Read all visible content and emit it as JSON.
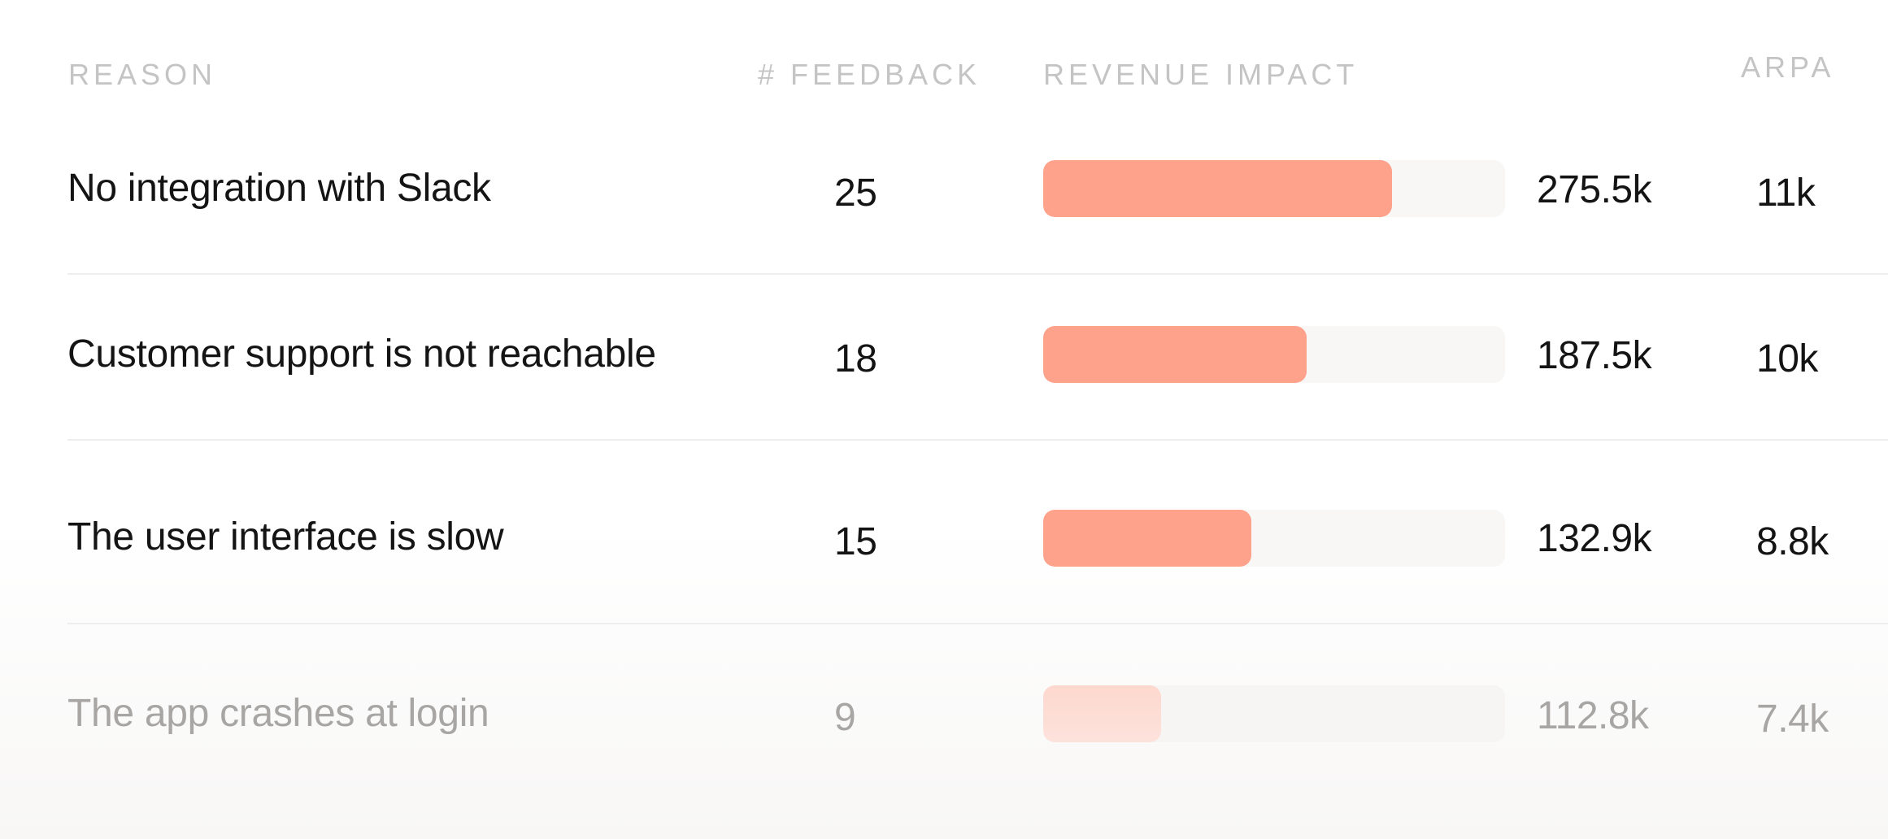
{
  "headers": {
    "reason": "REASON",
    "feedback": "# FEEDBACK",
    "revenue_impact": "REVENUE IMPACT",
    "arpa": "ARPA"
  },
  "colors": {
    "bar_fill": "#ffa28b",
    "bar_track": "#f8f7f6",
    "header_text": "#c4c4c4",
    "row_text": "#141414",
    "faded_text": "#a8a6a4"
  },
  "rows": [
    {
      "reason": "No integration with Slack",
      "feedback": "25",
      "revenue": "275.5k",
      "revenue_fraction": 0.755,
      "arpa": "11k"
    },
    {
      "reason": "Customer support is not reachable",
      "feedback": "18",
      "revenue": "187.5k",
      "revenue_fraction": 0.57,
      "arpa": "10k"
    },
    {
      "reason": "The user interface is slow",
      "feedback": "15",
      "revenue": "132.9k",
      "revenue_fraction": 0.45,
      "arpa": "8.8k"
    },
    {
      "reason": "The app crashes at login",
      "feedback": "9",
      "revenue": "112.8k",
      "revenue_fraction": 0.255,
      "arpa": "7.4k"
    }
  ]
}
